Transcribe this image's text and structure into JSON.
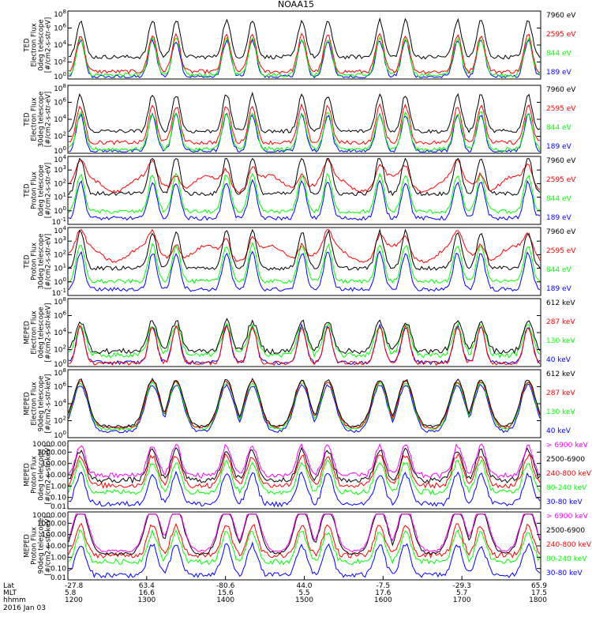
{
  "title": "NOAA15",
  "colors": {
    "black": "#000000",
    "red": "#ff0000",
    "green": "#00ff00",
    "blue": "#0000ff",
    "magenta": "#ff00ff"
  },
  "chart_data": [
    {
      "type": "line",
      "ylabel": [
        "TED",
        "Electron Flux",
        "0deg telescope",
        "[#/cm2-s-str-eV]"
      ],
      "y_scale": "log",
      "y_ticks": [
        "10^0",
        "10^2",
        "10^4",
        "10^6",
        "10^8"
      ],
      "legend": [
        {
          "label": "7960 eV",
          "color": "#000000"
        },
        {
          "label": "2595 eV",
          "color": "#ff0000"
        },
        {
          "label": "844 eV",
          "color": "#00ff00"
        },
        {
          "label": "189 eV",
          "color": "#0000ff"
        }
      ]
    },
    {
      "type": "line",
      "ylabel": [
        "TED",
        "Electron Flux",
        "30deg telescope",
        "[#/cm2-s-str-eV]"
      ],
      "y_scale": "log",
      "y_ticks": [
        "10^0",
        "10^2",
        "10^4",
        "10^6",
        "10^8"
      ],
      "legend": [
        {
          "label": "7960 eV",
          "color": "#000000"
        },
        {
          "label": "2595 eV",
          "color": "#ff0000"
        },
        {
          "label": "844 eV",
          "color": "#00ff00"
        },
        {
          "label": "189 eV",
          "color": "#0000ff"
        }
      ]
    },
    {
      "type": "line",
      "ylabel": [
        "TED",
        "Proton Flux",
        "0deg telescope",
        "[#/cm2-s-str-eV]"
      ],
      "y_scale": "log",
      "y_ticks": [
        "10^-1",
        "10^0",
        "10^1",
        "10^2",
        "10^3",
        "10^4"
      ],
      "legend": [
        {
          "label": "7960 eV",
          "color": "#000000"
        },
        {
          "label": "2595 eV",
          "color": "#ff0000"
        },
        {
          "label": "844 eV",
          "color": "#00ff00"
        },
        {
          "label": "189 eV",
          "color": "#0000ff"
        }
      ]
    },
    {
      "type": "line",
      "ylabel": [
        "TED",
        "Proton Flux",
        "30deg telescope",
        "[#/cm2-s-str-eV]"
      ],
      "y_scale": "log",
      "y_ticks": [
        "10^-1",
        "10^0",
        "10^1",
        "10^2",
        "10^3",
        "10^4"
      ],
      "legend": [
        {
          "label": "7960 eV",
          "color": "#000000"
        },
        {
          "label": "2595 eV",
          "color": "#ff0000"
        },
        {
          "label": "844 eV",
          "color": "#00ff00"
        },
        {
          "label": "189 eV",
          "color": "#0000ff"
        }
      ]
    },
    {
      "type": "line",
      "ylabel": [
        "MEPED",
        "Electron Flux",
        "0deg telescope",
        "[#/cm2-s-str-keV]"
      ],
      "y_scale": "log",
      "y_ticks": [
        "10^0",
        "10^2",
        "10^4",
        "10^6",
        "10^8"
      ],
      "legend": [
        {
          "label": "612 keV",
          "color": "#000000"
        },
        {
          "label": "287 keV",
          "color": "#ff0000"
        },
        {
          "label": "130 keV",
          "color": "#00ff00"
        },
        {
          "label": "40 keV",
          "color": "#0000ff"
        }
      ]
    },
    {
      "type": "line",
      "ylabel": [
        "MEPED",
        "Electron Flux",
        "90deg telescope",
        "[#/cm2-s-str-keV]"
      ],
      "y_scale": "log",
      "y_ticks": [
        "10^0",
        "10^2",
        "10^4",
        "10^6",
        "10^8"
      ],
      "legend": [
        {
          "label": "612 keV",
          "color": "#000000"
        },
        {
          "label": "287 keV",
          "color": "#ff0000"
        },
        {
          "label": "130 keV",
          "color": "#00ff00"
        },
        {
          "label": "40 keV",
          "color": "#0000ff"
        }
      ]
    },
    {
      "type": "line",
      "ylabel": [
        "MEPED",
        "Proton Flux",
        "0deg telescope",
        "[#/cm2-s-str-keV]"
      ],
      "y_scale": "log",
      "y_ticks": [
        "0.01",
        "0.10",
        "1.00",
        "10.00",
        "100.00",
        "1000.00",
        "10000.00"
      ],
      "legend": [
        {
          "label": "> 6900 keV",
          "color": "#ff00ff"
        },
        {
          "label": "2500-6900",
          "color": "#000000"
        },
        {
          "label": "240-800 keV",
          "color": "#ff0000"
        },
        {
          "label": "80-240 keV",
          "color": "#00ff00"
        },
        {
          "label": "30-80 keV",
          "color": "#0000ff"
        }
      ]
    },
    {
      "type": "line",
      "ylabel": [
        "MEPED",
        "Proton Flux",
        "90deg telescope",
        "[#/cm2-s-str-keV]"
      ],
      "y_scale": "log",
      "y_ticks": [
        "0.01",
        "0.10",
        "1.00",
        "10.00",
        "100.00",
        "1000.00",
        "10000.00"
      ],
      "legend": [
        {
          "label": "> 6900 keV",
          "color": "#ff00ff"
        },
        {
          "label": "2500-6900",
          "color": "#000000"
        },
        {
          "label": "240-800 keV",
          "color": "#ff0000"
        },
        {
          "label": "80-240 keV",
          "color": "#00ff00"
        },
        {
          "label": "30-80 keV",
          "color": "#0000ff"
        }
      ]
    }
  ],
  "x_axis": {
    "row_labels": [
      "Lat",
      "MLT",
      "hhmm"
    ],
    "columns": [
      {
        "lat": "-27.8",
        "mlt": "5.8",
        "hhmm": "1200"
      },
      {
        "lat": "63.4",
        "mlt": "16.6",
        "hhmm": "1300"
      },
      {
        "lat": "-80.6",
        "mlt": "15.6",
        "hhmm": "1400"
      },
      {
        "lat": "44.0",
        "mlt": "5.5",
        "hhmm": "1500"
      },
      {
        "lat": "-7.5",
        "mlt": "17.6",
        "hhmm": "1600"
      },
      {
        "lat": "-29.3",
        "mlt": "5.7",
        "hhmm": "1700"
      },
      {
        "lat": "65.9",
        "mlt": "17.5",
        "hhmm": "1800"
      }
    ],
    "date": "2016 Jan 03",
    "x_range": [
      "1200",
      "1800"
    ]
  }
}
